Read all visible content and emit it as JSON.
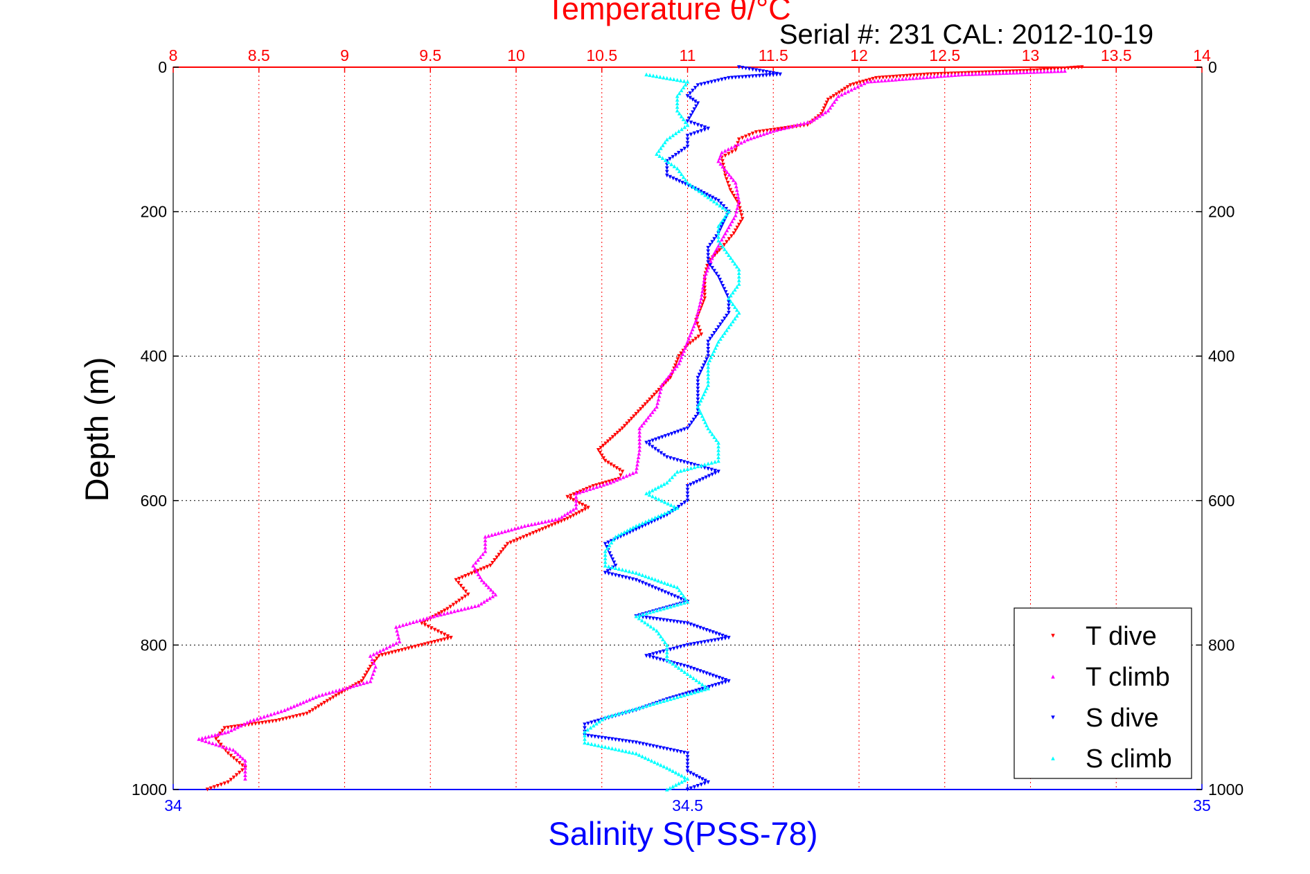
{
  "chart_data": {
    "type": "scatter",
    "title": "Temperature θ/°C",
    "annotation": "Serial #: 231  CAL: 2012-10-19",
    "xlabel": "Salinity S(PSS-78)",
    "ylabel": "Depth (m)",
    "x_top": {
      "label": "Temperature θ/°C",
      "lim": [
        8,
        14
      ],
      "ticks": [
        "8",
        "8.5",
        "9",
        "9.5",
        "10",
        "10.5",
        "11",
        "11.5",
        "12",
        "12.5",
        "13",
        "13.5",
        "14"
      ],
      "color": "#ff0000"
    },
    "x_bottom": {
      "label": "Salinity S(PSS-78)",
      "lim": [
        34,
        35
      ],
      "ticks": [
        "34",
        "34.5",
        "35"
      ],
      "color": "#0000ff"
    },
    "y": {
      "label": "Depth (m)",
      "lim": [
        0,
        1000
      ],
      "reversed": true,
      "ticks": [
        "0",
        "200",
        "400",
        "600",
        "800",
        "1000"
      ]
    },
    "grid": true,
    "legend": {
      "placement": "bottom-right",
      "entries": [
        "T dive",
        "T climb",
        "S dive",
        "S climb"
      ]
    },
    "colors": {
      "t_dive": "#ff0000",
      "t_climb": "#ff00ff",
      "s_dive": "#0000ff",
      "s_climb": "#00ffff",
      "grid_vertical": "#ff0000",
      "grid_horizontal": "#000000",
      "axis_bottom": "#0000ff",
      "axis_top": "#ff0000"
    },
    "series": [
      {
        "name": "T dive",
        "axis": "top",
        "color": "#ff0000",
        "points": [
          [
            13.3,
            0
          ],
          [
            13.0,
            5
          ],
          [
            12.4,
            10
          ],
          [
            12.1,
            15
          ],
          [
            11.95,
            25
          ],
          [
            11.82,
            45
          ],
          [
            11.78,
            65
          ],
          [
            11.7,
            80
          ],
          [
            11.55,
            85
          ],
          [
            11.4,
            90
          ],
          [
            11.3,
            100
          ],
          [
            11.28,
            115
          ],
          [
            11.2,
            125
          ],
          [
            11.22,
            150
          ],
          [
            11.25,
            170
          ],
          [
            11.3,
            190
          ],
          [
            11.32,
            210
          ],
          [
            11.27,
            230
          ],
          [
            11.2,
            250
          ],
          [
            11.12,
            270
          ],
          [
            11.1,
            290
          ],
          [
            11.1,
            320
          ],
          [
            11.05,
            350
          ],
          [
            11.08,
            370
          ],
          [
            11.0,
            385
          ],
          [
            10.95,
            400
          ],
          [
            10.9,
            430
          ],
          [
            10.78,
            460
          ],
          [
            10.7,
            480
          ],
          [
            10.62,
            500
          ],
          [
            10.55,
            515
          ],
          [
            10.48,
            530
          ],
          [
            10.52,
            545
          ],
          [
            10.62,
            560
          ],
          [
            10.6,
            570
          ],
          [
            10.45,
            580
          ],
          [
            10.3,
            595
          ],
          [
            10.42,
            610
          ],
          [
            10.3,
            625
          ],
          [
            10.1,
            645
          ],
          [
            9.95,
            660
          ],
          [
            9.85,
            690
          ],
          [
            9.65,
            710
          ],
          [
            9.72,
            730
          ],
          [
            9.6,
            750
          ],
          [
            9.45,
            770
          ],
          [
            9.62,
            790
          ],
          [
            9.45,
            800
          ],
          [
            9.2,
            815
          ],
          [
            9.15,
            830
          ],
          [
            9.1,
            850
          ],
          [
            8.95,
            870
          ],
          [
            8.78,
            895
          ],
          [
            8.6,
            905
          ],
          [
            8.3,
            915
          ],
          [
            8.25,
            930
          ],
          [
            8.32,
            950
          ],
          [
            8.42,
            970
          ],
          [
            8.32,
            990
          ],
          [
            8.2,
            1000
          ]
        ]
      },
      {
        "name": "T climb",
        "axis": "top",
        "color": "#ff00ff",
        "points": [
          [
            13.2,
            5
          ],
          [
            12.6,
            10
          ],
          [
            12.05,
            20
          ],
          [
            11.88,
            40
          ],
          [
            11.82,
            60
          ],
          [
            11.72,
            75
          ],
          [
            11.5,
            88
          ],
          [
            11.35,
            100
          ],
          [
            11.2,
            118
          ],
          [
            11.18,
            130
          ],
          [
            11.28,
            160
          ],
          [
            11.3,
            185
          ],
          [
            11.28,
            205
          ],
          [
            11.22,
            230
          ],
          [
            11.15,
            260
          ],
          [
            11.1,
            290
          ],
          [
            11.08,
            320
          ],
          [
            11.05,
            350
          ],
          [
            11.0,
            380
          ],
          [
            10.95,
            410
          ],
          [
            10.85,
            440
          ],
          [
            10.82,
            470
          ],
          [
            10.72,
            500
          ],
          [
            10.72,
            530
          ],
          [
            10.7,
            560
          ],
          [
            10.55,
            575
          ],
          [
            10.35,
            590
          ],
          [
            10.35,
            610
          ],
          [
            10.25,
            625
          ],
          [
            10.05,
            635
          ],
          [
            9.82,
            650
          ],
          [
            9.82,
            670
          ],
          [
            9.75,
            690
          ],
          [
            9.8,
            710
          ],
          [
            9.88,
            730
          ],
          [
            9.78,
            745
          ],
          [
            9.52,
            760
          ],
          [
            9.3,
            775
          ],
          [
            9.32,
            795
          ],
          [
            9.15,
            815
          ],
          [
            9.18,
            830
          ],
          [
            9.15,
            850
          ],
          [
            8.85,
            870
          ],
          [
            8.65,
            890
          ],
          [
            8.45,
            905
          ],
          [
            8.32,
            920
          ],
          [
            8.15,
            930
          ],
          [
            8.35,
            945
          ],
          [
            8.42,
            960
          ],
          [
            8.42,
            985
          ]
        ]
      },
      {
        "name": "S dive",
        "axis": "bottom",
        "color": "#0000ff",
        "points": [
          [
            34.55,
            0
          ],
          [
            34.59,
            10
          ],
          [
            34.54,
            15
          ],
          [
            34.51,
            25
          ],
          [
            34.5,
            40
          ],
          [
            34.51,
            50
          ],
          [
            34.5,
            75
          ],
          [
            34.52,
            85
          ],
          [
            34.5,
            95
          ],
          [
            34.5,
            110
          ],
          [
            34.48,
            130
          ],
          [
            34.48,
            150
          ],
          [
            34.51,
            170
          ],
          [
            34.53,
            185
          ],
          [
            34.54,
            200
          ],
          [
            34.53,
            230
          ],
          [
            34.52,
            250
          ],
          [
            34.52,
            270
          ],
          [
            34.53,
            290
          ],
          [
            34.54,
            320
          ],
          [
            34.54,
            340
          ],
          [
            34.53,
            360
          ],
          [
            34.52,
            380
          ],
          [
            34.52,
            400
          ],
          [
            34.51,
            430
          ],
          [
            34.51,
            460
          ],
          [
            34.51,
            480
          ],
          [
            34.5,
            500
          ],
          [
            34.46,
            520
          ],
          [
            34.48,
            540
          ],
          [
            34.53,
            560
          ],
          [
            34.5,
            580
          ],
          [
            34.5,
            600
          ],
          [
            34.48,
            620
          ],
          [
            34.45,
            640
          ],
          [
            34.42,
            660
          ],
          [
            34.43,
            690
          ],
          [
            34.42,
            700
          ],
          [
            34.45,
            710
          ],
          [
            34.5,
            740
          ],
          [
            34.45,
            760
          ],
          [
            34.5,
            770
          ],
          [
            34.54,
            790
          ],
          [
            34.5,
            800
          ],
          [
            34.46,
            815
          ],
          [
            34.5,
            830
          ],
          [
            34.54,
            850
          ],
          [
            34.48,
            875
          ],
          [
            34.45,
            890
          ],
          [
            34.4,
            910
          ],
          [
            34.4,
            925
          ],
          [
            34.45,
            935
          ],
          [
            34.5,
            950
          ],
          [
            34.5,
            975
          ],
          [
            34.52,
            990
          ],
          [
            34.5,
            1000
          ]
        ]
      },
      {
        "name": "S climb",
        "axis": "bottom",
        "color": "#00ffff",
        "points": [
          [
            34.46,
            10
          ],
          [
            34.5,
            20
          ],
          [
            34.49,
            40
          ],
          [
            34.49,
            60
          ],
          [
            34.5,
            80
          ],
          [
            34.48,
            100
          ],
          [
            34.47,
            120
          ],
          [
            34.49,
            140
          ],
          [
            34.5,
            160
          ],
          [
            34.52,
            180
          ],
          [
            34.54,
            200
          ],
          [
            34.53,
            220
          ],
          [
            34.53,
            240
          ],
          [
            34.54,
            260
          ],
          [
            34.55,
            280
          ],
          [
            34.55,
            300
          ],
          [
            34.54,
            320
          ],
          [
            34.55,
            340
          ],
          [
            34.54,
            360
          ],
          [
            34.53,
            380
          ],
          [
            34.52,
            410
          ],
          [
            34.52,
            440
          ],
          [
            34.51,
            470
          ],
          [
            34.52,
            500
          ],
          [
            34.53,
            520
          ],
          [
            34.53,
            545
          ],
          [
            34.49,
            560
          ],
          [
            34.48,
            575
          ],
          [
            34.46,
            590
          ],
          [
            34.49,
            610
          ],
          [
            34.45,
            635
          ],
          [
            34.43,
            650
          ],
          [
            34.42,
            670
          ],
          [
            34.42,
            690
          ],
          [
            34.45,
            700
          ],
          [
            34.49,
            720
          ],
          [
            34.5,
            740
          ],
          [
            34.45,
            760
          ],
          [
            34.47,
            780
          ],
          [
            34.48,
            800
          ],
          [
            34.48,
            820
          ],
          [
            34.5,
            840
          ],
          [
            34.52,
            860
          ],
          [
            34.47,
            880
          ],
          [
            34.42,
            900
          ],
          [
            34.4,
            920
          ],
          [
            34.4,
            935
          ],
          [
            34.45,
            950
          ],
          [
            34.48,
            970
          ],
          [
            34.5,
            985
          ],
          [
            34.48,
            1000
          ]
        ]
      }
    ]
  }
}
